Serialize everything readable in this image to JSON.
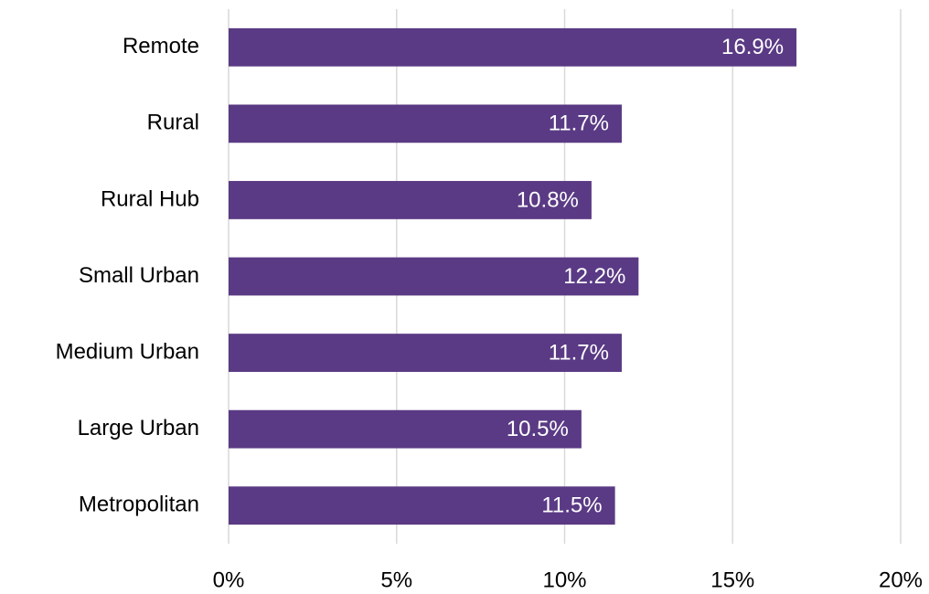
{
  "chart_data": {
    "type": "hbar",
    "categories": [
      "Remote",
      "Rural",
      "Rural Hub",
      "Small Urban",
      "Medium Urban",
      "Large Urban",
      "Metropolitan"
    ],
    "values": [
      16.9,
      11.7,
      10.8,
      12.2,
      11.7,
      10.5,
      11.5
    ],
    "value_labels": [
      "16.9%",
      "11.7%",
      "10.8%",
      "12.2%",
      "11.7%",
      "10.5%",
      "11.5%"
    ],
    "color": "#5a3a84",
    "xlim": [
      0,
      20
    ],
    "xticks": [
      {
        "value": 0,
        "label": "0%"
      },
      {
        "value": 5,
        "label": "5%"
      },
      {
        "value": 10,
        "label": "10%"
      },
      {
        "value": 15,
        "label": "15%"
      },
      {
        "value": 20,
        "label": "20%"
      }
    ],
    "grid": true
  }
}
